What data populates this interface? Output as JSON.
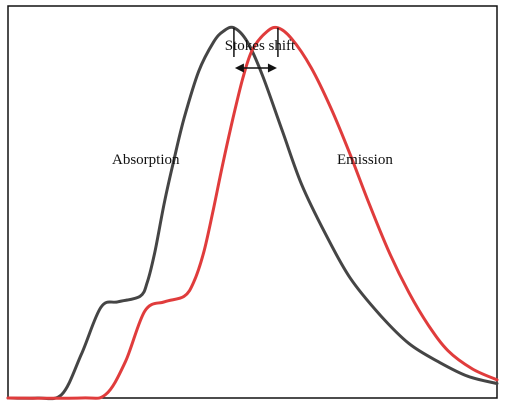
{
  "chart_data": {
    "type": "line",
    "title": "",
    "xlabel": "",
    "ylabel": "",
    "xlim": [
      0,
      1
    ],
    "ylim": [
      0,
      1.08
    ],
    "grid": false,
    "legend": "none",
    "series": [
      {
        "label": "Absorption",
        "color": "#454545",
        "x": [
          0.0,
          0.06,
          0.11,
          0.15,
          0.19,
          0.225,
          0.27,
          0.285,
          0.3,
          0.32,
          0.34,
          0.36,
          0.39,
          0.42,
          0.44,
          0.462,
          0.49,
          0.52,
          0.56,
          0.6,
          0.65,
          0.7,
          0.76,
          0.82,
          0.88,
          0.94,
          1.0
        ],
        "y": [
          0.0,
          0.0,
          0.01,
          0.12,
          0.25,
          0.265,
          0.28,
          0.32,
          0.4,
          0.54,
          0.66,
          0.77,
          0.9,
          0.98,
          1.01,
          1.02,
          0.98,
          0.89,
          0.74,
          0.59,
          0.45,
          0.33,
          0.23,
          0.15,
          0.1,
          0.06,
          0.04
        ]
      },
      {
        "label": "Emission",
        "color": "#e03c3c",
        "x": [
          0.0,
          0.15,
          0.2,
          0.24,
          0.28,
          0.32,
          0.36,
          0.38,
          0.4,
          0.42,
          0.44,
          0.46,
          0.48,
          0.5,
          0.53,
          0.552,
          0.58,
          0.62,
          0.66,
          0.7,
          0.74,
          0.78,
          0.82,
          0.86,
          0.9,
          0.95,
          1.0
        ],
        "y": [
          0.0,
          0.0,
          0.01,
          0.1,
          0.24,
          0.265,
          0.28,
          0.32,
          0.4,
          0.52,
          0.65,
          0.77,
          0.88,
          0.96,
          1.01,
          1.02,
          0.99,
          0.91,
          0.8,
          0.67,
          0.53,
          0.4,
          0.29,
          0.2,
          0.13,
          0.08,
          0.05
        ]
      }
    ],
    "annotations": [
      {
        "text": "Stokes shift",
        "arrow_from": 0.462,
        "arrow_to": 0.552,
        "y": 1.02
      }
    ]
  }
}
